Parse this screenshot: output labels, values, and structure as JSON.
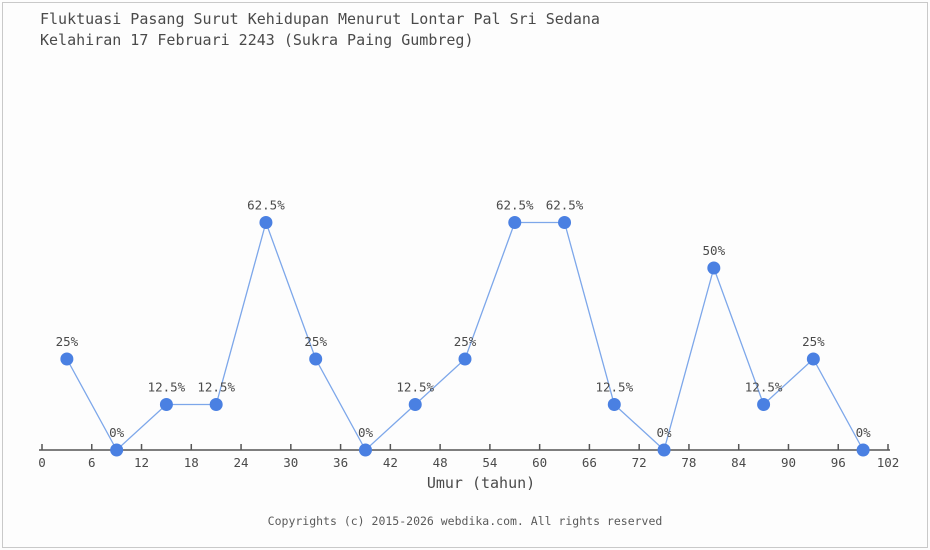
{
  "page": {
    "background_color": "#fdfdfd",
    "border_color": "#c9c9c9"
  },
  "chart_data": {
    "type": "line",
    "title": "Fluktuasi Pasang Surut Kehidupan Menurut Lontar Pal Sri Sedana Kelahiran 17 Februari 2243 (Sukra Paing Gumbreg)",
    "title_lines": [
      "Fluktuasi Pasang Surut Kehidupan Menurut Lontar Pal Sri Sedana",
      "Kelahiran 17 Februari 2243 (Sukra Paing Gumbreg)"
    ],
    "xlabel": "Umur (tahun)",
    "ylabel": "",
    "x": [
      3,
      9,
      15,
      21,
      27,
      33,
      39,
      45,
      51,
      57,
      63,
      69,
      75,
      81,
      87,
      93,
      99
    ],
    "values": [
      25,
      0,
      12.5,
      12.5,
      62.5,
      25,
      0,
      12.5,
      25,
      62.5,
      62.5,
      12.5,
      0,
      50,
      12.5,
      25,
      0
    ],
    "point_labels": [
      "25%",
      "0%",
      "12.5%",
      "12.5%",
      "62.5%",
      "25%",
      "0%",
      "12.5%",
      "25%",
      "62.5%",
      "62.5%",
      "12.5%",
      "0%",
      "50%",
      "12.5%",
      "25%",
      "0%"
    ],
    "x_ticks": [
      0,
      6,
      12,
      18,
      24,
      30,
      36,
      42,
      48,
      54,
      60,
      66,
      72,
      78,
      84,
      90,
      96,
      102
    ],
    "xlim": [
      0,
      102
    ],
    "ylim": [
      0,
      100
    ],
    "grid": false,
    "legend": "none",
    "line_color": "#7da7ea",
    "marker_color": "#4a80e2",
    "axis_color": "#555555",
    "text_color": "#4a4a4a"
  },
  "footer": {
    "copyright": "Copyrights (c) 2015-2026 webdika.com. All rights reserved"
  }
}
